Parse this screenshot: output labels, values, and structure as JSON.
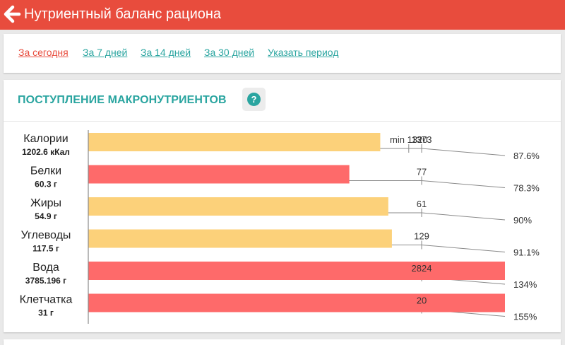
{
  "header": {
    "title": "Нутриентный баланс рациона",
    "back_icon": "arrow-left-icon"
  },
  "periods": [
    {
      "label": "За сегодня",
      "active": true
    },
    {
      "label": "За 7 дней",
      "active": false
    },
    {
      "label": "За 14 дней",
      "active": false
    },
    {
      "label": "За 30 дней",
      "active": false
    },
    {
      "label": "Указать период",
      "active": false
    }
  ],
  "macro": {
    "title": "ПОСТУПЛЕНИЕ МАКРОНУТРИЕНТОВ",
    "help_icon": "question-circle-icon",
    "help_glyph": "?"
  },
  "colors": {
    "accent": "#e84c3d",
    "teal": "#2aa5a0",
    "bar_ok": "#fcd17a",
    "bar_bad": "#fe6a6a"
  },
  "chart_data": {
    "type": "bar",
    "orientation": "horizontal",
    "rows": [
      {
        "name": "Калории",
        "amount": "1202.6 кКал",
        "value": 1202.6,
        "norm": 1373,
        "norm_label": "1373",
        "min": 1320,
        "min_label": "min 1320",
        "percent": "87.6%",
        "status": "ok"
      },
      {
        "name": "Белки",
        "amount": "60.3 г",
        "value": 60.3,
        "norm": 77,
        "norm_label": "77",
        "percent": "78.3%",
        "status": "bad"
      },
      {
        "name": "Жиры",
        "amount": "54.9 г",
        "value": 54.9,
        "norm": 61,
        "norm_label": "61",
        "percent": "90%",
        "status": "ok"
      },
      {
        "name": "Углеводы",
        "amount": "117.5 г",
        "value": 117.5,
        "norm": 129,
        "norm_label": "129",
        "percent": "91.1%",
        "status": "ok"
      },
      {
        "name": "Вода",
        "amount": "3785.196 г",
        "value": 3785.196,
        "norm": 2824,
        "norm_label": "2824",
        "percent": "134%",
        "status": "bad"
      },
      {
        "name": "Клетчатка",
        "amount": "31 г",
        "value": 31,
        "norm": 20,
        "norm_label": "20",
        "percent": "155%",
        "status": "bad"
      }
    ]
  }
}
